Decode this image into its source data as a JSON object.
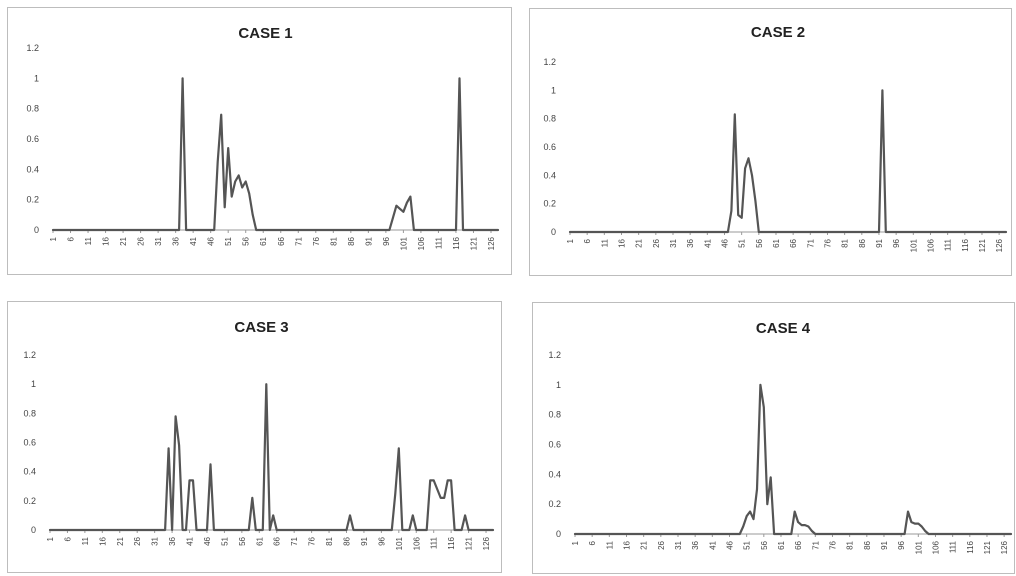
{
  "colors": {
    "line": "#555555",
    "axis": "#9a9a9a",
    "border": "#bdbdbd"
  },
  "chart_data": [
    {
      "type": "line",
      "title": "CASE 1",
      "ylim": [
        0,
        1.2
      ],
      "yticks": [
        "0",
        "0.2",
        "0.4",
        "0.6",
        "0.8",
        "1",
        "1.2"
      ],
      "xlim": [
        1,
        128
      ],
      "xticks": [
        "1",
        "6",
        "11",
        "16",
        "21",
        "26",
        "31",
        "36",
        "41",
        "46",
        "51",
        "56",
        "61",
        "66",
        "71",
        "76",
        "81",
        "86",
        "91",
        "96",
        "101",
        "106",
        "111",
        "116",
        "121",
        "126"
      ],
      "grid": false,
      "series": [
        {
          "x": [
            1,
            37,
            38,
            39,
            47,
            48,
            49,
            50,
            51,
            52,
            53,
            54,
            55,
            56,
            57,
            58,
            59,
            60,
            97,
            98,
            99,
            100,
            101,
            102,
            103,
            104,
            105,
            116,
            117,
            118,
            128
          ],
          "y": [
            0,
            0,
            1,
            0,
            0,
            0.45,
            0.76,
            0.15,
            0.54,
            0.22,
            0.32,
            0.36,
            0.28,
            0.32,
            0.24,
            0.1,
            0,
            0,
            0,
            0.08,
            0.16,
            0.14,
            0.12,
            0.18,
            0.22,
            0,
            0,
            0,
            1,
            0,
            0
          ]
        }
      ]
    },
    {
      "type": "line",
      "title": "CASE 2",
      "ylim": [
        0,
        1.2
      ],
      "yticks": [
        "0",
        "0.2",
        "0.4",
        "0.6",
        "0.8",
        "1",
        "1.2"
      ],
      "xlim": [
        1,
        128
      ],
      "xticks": [
        "1",
        "6",
        "11",
        "16",
        "21",
        "26",
        "31",
        "36",
        "41",
        "46",
        "51",
        "56",
        "61",
        "66",
        "71",
        "76",
        "81",
        "86",
        "91",
        "96",
        "101",
        "106",
        "111",
        "116",
        "121",
        "126"
      ],
      "grid": false,
      "series": [
        {
          "x": [
            1,
            47,
            48,
            49,
            50,
            51,
            52,
            53,
            54,
            55,
            56,
            57,
            91,
            92,
            93,
            128
          ],
          "y": [
            0,
            0,
            0.15,
            0.83,
            0.12,
            0.1,
            0.45,
            0.52,
            0.4,
            0.22,
            0,
            0,
            0,
            1,
            0,
            0
          ]
        }
      ]
    },
    {
      "type": "line",
      "title": "CASE 3",
      "ylim": [
        0,
        1.2
      ],
      "yticks": [
        "0",
        "0.2",
        "0.4",
        "0.6",
        "0.8",
        "1",
        "1.2"
      ],
      "xlim": [
        1,
        128
      ],
      "xticks": [
        "1",
        "6",
        "11",
        "16",
        "21",
        "26",
        "31",
        "36",
        "41",
        "46",
        "51",
        "56",
        "61",
        "66",
        "71",
        "76",
        "81",
        "86",
        "91",
        "96",
        "101",
        "106",
        "111",
        "116",
        "121",
        "126"
      ],
      "grid": false,
      "series": [
        {
          "x": [
            1,
            34,
            35,
            36,
            37,
            38,
            39,
            40,
            41,
            42,
            43,
            44,
            46,
            47,
            48,
            58,
            59,
            60,
            62,
            63,
            64,
            65,
            66,
            67,
            86,
            87,
            88,
            99,
            100,
            101,
            102,
            104,
            105,
            106,
            109,
            110,
            111,
            113,
            114,
            115,
            116,
            117,
            119,
            120,
            121,
            128
          ],
          "y": [
            0,
            0,
            0.56,
            0,
            0.78,
            0.58,
            0,
            0,
            0.34,
            0.34,
            0,
            0,
            0,
            0.45,
            0,
            0,
            0.22,
            0,
            0,
            1,
            0,
            0.1,
            0,
            0,
            0,
            0.1,
            0,
            0,
            0.25,
            0.56,
            0,
            0,
            0.1,
            0,
            0,
            0.34,
            0.34,
            0.22,
            0.22,
            0.34,
            0.34,
            0,
            0,
            0.1,
            0,
            0
          ]
        }
      ]
    },
    {
      "type": "line",
      "title": "CASE 4",
      "ylim": [
        0,
        1.2
      ],
      "yticks": [
        "0",
        "0.2",
        "0.4",
        "0.6",
        "0.8",
        "1",
        "1.2"
      ],
      "xlim": [
        1,
        128
      ],
      "xticks": [
        "1",
        "6",
        "11",
        "16",
        "21",
        "26",
        "31",
        "36",
        "41",
        "46",
        "51",
        "56",
        "61",
        "66",
        "71",
        "76",
        "81",
        "86",
        "91",
        "96",
        "101",
        "106",
        "111",
        "116",
        "121",
        "126"
      ],
      "grid": false,
      "series": [
        {
          "x": [
            1,
            49,
            50,
            51,
            52,
            53,
            54,
            55,
            56,
            57,
            58,
            59,
            60,
            64,
            65,
            66,
            67,
            68,
            69,
            70,
            71,
            97,
            98,
            99,
            100,
            101,
            102,
            103,
            104,
            128
          ],
          "y": [
            0,
            0,
            0.05,
            0.12,
            0.15,
            0.1,
            0.3,
            1.0,
            0.85,
            0.2,
            0.38,
            0,
            0,
            0,
            0.15,
            0.08,
            0.06,
            0.06,
            0.05,
            0.02,
            0,
            0,
            0.15,
            0.08,
            0.07,
            0.07,
            0.05,
            0.02,
            0,
            0
          ]
        }
      ]
    }
  ]
}
